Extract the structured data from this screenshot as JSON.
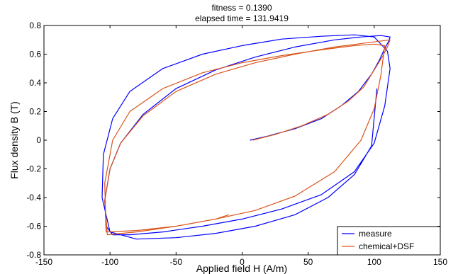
{
  "chart_data": {
    "type": "line",
    "title_lines": [
      "fitness = 0.1390",
      "elapsed time = 131.9419"
    ],
    "xlabel": "Applied field H (A/m)",
    "ylabel": "Flux density B (T)",
    "xlim": [
      -150,
      150
    ],
    "ylim": [
      -0.8,
      0.8
    ],
    "xticks": [
      -150,
      -100,
      -50,
      0,
      50,
      100,
      150
    ],
    "yticks": [
      -0.8,
      -0.6,
      -0.4,
      -0.2,
      0,
      0.2,
      0.4,
      0.6,
      0.8
    ],
    "xtick_labels": [
      "-150",
      "-100",
      "-50",
      "0",
      "50",
      "100",
      "150"
    ],
    "ytick_labels": [
      "-0.8",
      "-0.6",
      "-0.4",
      "-0.2",
      "0",
      "0.2",
      "0.4",
      "0.6",
      "0.8"
    ],
    "grid": false,
    "legend": {
      "position": "bottom-right"
    },
    "series": [
      {
        "name": "measure",
        "color": "#0000ff",
        "x": [
          6,
          20,
          40,
          60,
          75,
          88,
          98,
          104,
          108,
          111,
          112,
          105,
          90,
          70,
          40,
          10,
          -20,
          -50,
          -75,
          -92,
          -100,
          -104,
          -103,
          -98,
          -85,
          -60,
          -30,
          0,
          30,
          60,
          85,
          100,
          108,
          112,
          110,
          100,
          85,
          60,
          30,
          0,
          -30,
          -60,
          -85,
          -98,
          -105,
          -106,
          -100,
          -80,
          -50,
          -20,
          10,
          40,
          65,
          85,
          98,
          102
        ],
        "y": [
          0.0,
          0.03,
          0.08,
          0.15,
          0.24,
          0.34,
          0.46,
          0.56,
          0.64,
          0.69,
          0.72,
          0.73,
          0.72,
          0.7,
          0.65,
          0.58,
          0.49,
          0.36,
          0.18,
          -0.02,
          -0.2,
          -0.42,
          -0.6,
          -0.66,
          -0.66,
          -0.64,
          -0.6,
          -0.55,
          -0.48,
          -0.38,
          -0.22,
          -0.02,
          0.24,
          0.5,
          0.62,
          0.72,
          0.735,
          0.725,
          0.705,
          0.66,
          0.6,
          0.5,
          0.34,
          0.15,
          -0.1,
          -0.4,
          -0.64,
          -0.69,
          -0.68,
          -0.65,
          -0.6,
          -0.52,
          -0.4,
          -0.24,
          -0.04,
          0.36
        ]
      },
      {
        "name": "chemical+DSF",
        "color": "#d9541a",
        "x": [
          8,
          25,
          45,
          65,
          80,
          92,
          100,
          106,
          110,
          112,
          95,
          70,
          40,
          10,
          -20,
          -50,
          -75,
          -92,
          -100,
          -104,
          -102,
          -80,
          -50,
          -20,
          10,
          40,
          70,
          90,
          100,
          105,
          108,
          100,
          85,
          60,
          30,
          0,
          -30,
          -60,
          -85,
          -98,
          -104,
          -103,
          -80,
          -50,
          -20,
          -10
        ],
        "y": [
          0.0,
          0.04,
          0.1,
          0.18,
          0.27,
          0.37,
          0.49,
          0.58,
          0.65,
          0.7,
          0.68,
          0.65,
          0.6,
          0.54,
          0.46,
          0.34,
          0.17,
          -0.02,
          -0.2,
          -0.42,
          -0.66,
          -0.64,
          -0.6,
          -0.55,
          -0.49,
          -0.39,
          -0.22,
          0.0,
          0.22,
          0.45,
          0.66,
          0.67,
          0.66,
          0.63,
          0.59,
          0.54,
          0.47,
          0.36,
          0.2,
          0.0,
          -0.3,
          -0.64,
          -0.63,
          -0.6,
          -0.55,
          -0.52
        ]
      }
    ]
  }
}
